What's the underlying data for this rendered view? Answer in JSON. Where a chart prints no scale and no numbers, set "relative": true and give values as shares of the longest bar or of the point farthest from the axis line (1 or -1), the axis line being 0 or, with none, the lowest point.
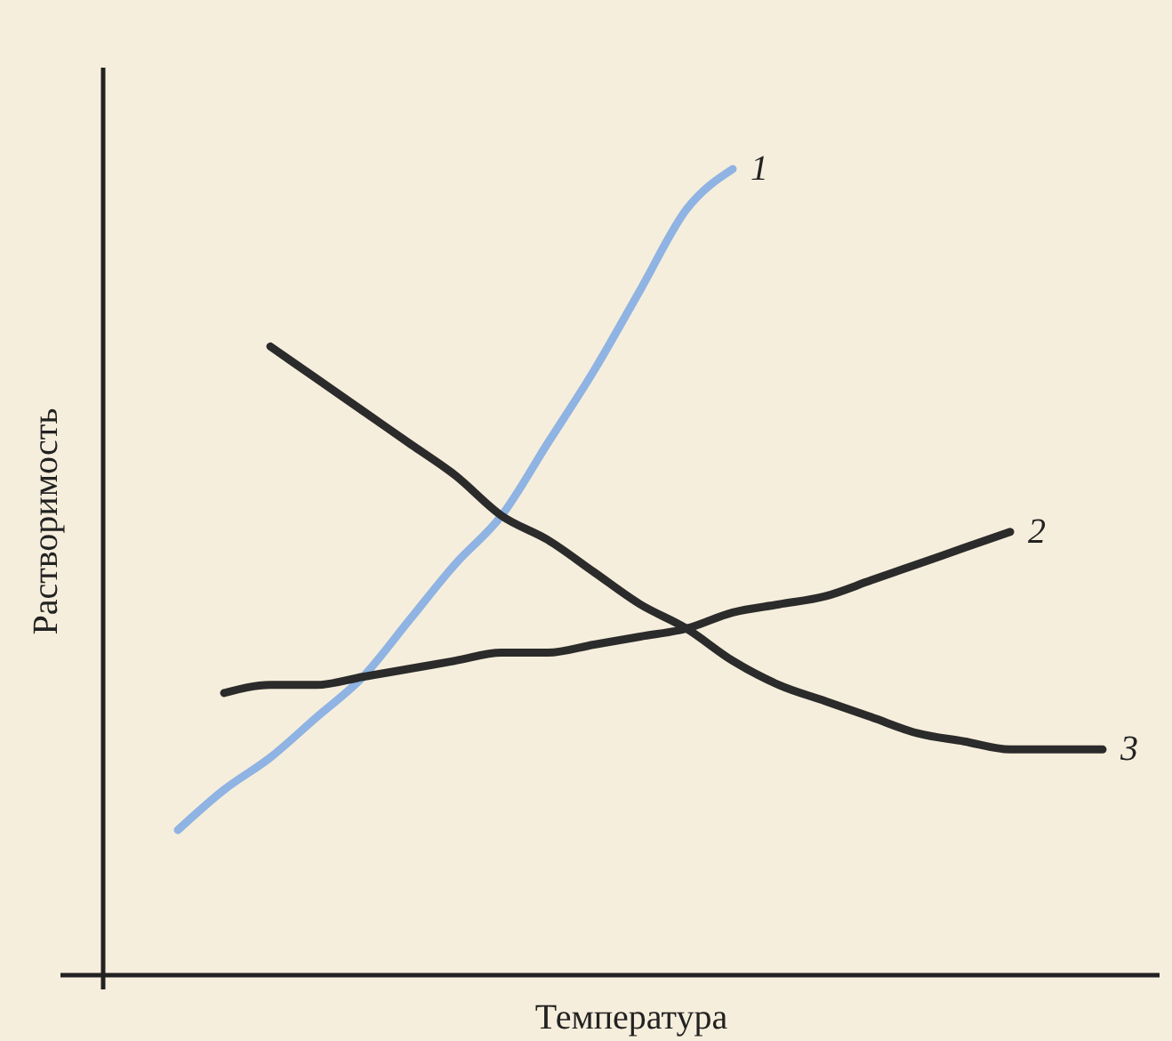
{
  "chart_data": {
    "type": "line",
    "relative": true,
    "xlabel": "Температура",
    "ylabel": "Растворимость",
    "categories": [
      null,
      null,
      null,
      null,
      null,
      null,
      null,
      null,
      null,
      null,
      null,
      null,
      null,
      null,
      null,
      null,
      null,
      null,
      null,
      null,
      null
    ],
    "series": [
      {
        "name": "1",
        "color": "#8fb3e3",
        "values": [
          0.18,
          0.23,
          0.27,
          0.32,
          0.37,
          0.44,
          0.51,
          0.57,
          0.66,
          0.75,
          0.85,
          0.95,
          1.0,
          null,
          null,
          null,
          null,
          null,
          null,
          null,
          null
        ]
      },
      {
        "name": "2",
        "color": "#2b2b2b",
        "values": [
          null,
          0.35,
          0.36,
          0.36,
          0.37,
          0.38,
          0.39,
          0.4,
          0.4,
          0.41,
          0.42,
          0.43,
          0.45,
          0.46,
          0.47,
          0.49,
          0.51,
          0.53,
          0.55,
          null,
          null
        ]
      },
      {
        "name": "3",
        "color": "#2b2b2b",
        "values": [
          null,
          null,
          0.78,
          0.74,
          0.7,
          0.66,
          0.62,
          0.57,
          0.54,
          0.5,
          0.46,
          0.43,
          0.39,
          0.36,
          0.34,
          0.32,
          0.3,
          0.29,
          0.28,
          0.28,
          0.28
        ]
      }
    ]
  }
}
